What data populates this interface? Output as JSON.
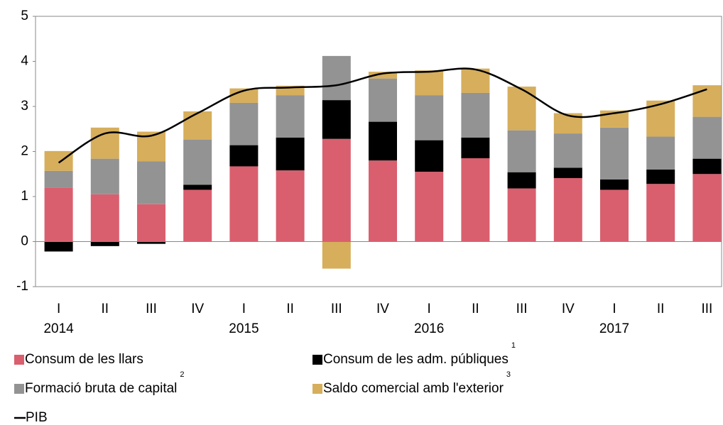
{
  "chart_data": {
    "type": "stacked-bar-line",
    "categories": [
      "I",
      "II",
      "III",
      "IV",
      "I",
      "II",
      "III",
      "IV",
      "I",
      "II",
      "III",
      "IV",
      "I",
      "II",
      "III"
    ],
    "year_labels": [
      "2014",
      null,
      null,
      null,
      "2015",
      null,
      null,
      null,
      "2016",
      null,
      null,
      null,
      "2017",
      null,
      null
    ],
    "ylim": [
      -1,
      5
    ],
    "yticks": [
      -1,
      0,
      1,
      2,
      3,
      4,
      5
    ],
    "series": [
      {
        "name": "Consum de les llars",
        "color": "#d95f6e",
        "values": [
          1.2,
          1.05,
          0.83,
          1.15,
          1.67,
          1.58,
          2.28,
          1.8,
          1.55,
          1.85,
          1.18,
          1.41,
          1.15,
          1.28,
          1.5
        ]
      },
      {
        "name": "Consum de les adm. públiques",
        "note": "1",
        "color": "#000000",
        "values": [
          -0.22,
          -0.1,
          -0.05,
          0.11,
          0.47,
          0.73,
          0.86,
          0.86,
          0.7,
          0.46,
          0.36,
          0.23,
          0.23,
          0.32,
          0.34
        ]
      },
      {
        "name": "Formació bruta de capital",
        "note": "2",
        "color": "#939393",
        "values": [
          0.37,
          0.79,
          0.95,
          1.0,
          0.94,
          0.94,
          0.98,
          0.96,
          1.0,
          0.99,
          0.93,
          0.76,
          1.15,
          0.73,
          0.93
        ]
      },
      {
        "name": "Saldo comercial amb l'exterior",
        "note": "3",
        "color": "#d6ae5c",
        "values": [
          0.44,
          0.69,
          0.66,
          0.63,
          0.32,
          0.21,
          -0.6,
          0.15,
          0.55,
          0.54,
          0.97,
          0.45,
          0.38,
          0.8,
          0.7
        ]
      }
    ],
    "line": {
      "name": "PIB",
      "color": "#000000",
      "values": [
        1.75,
        2.4,
        2.35,
        2.85,
        3.35,
        3.42,
        3.47,
        3.73,
        3.77,
        3.82,
        3.38,
        2.8,
        2.85,
        3.05,
        3.38
      ]
    }
  }
}
